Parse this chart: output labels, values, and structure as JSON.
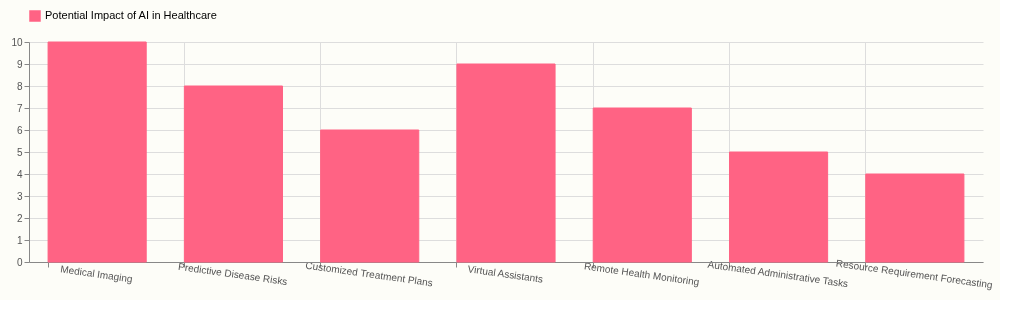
{
  "chart_data": {
    "type": "bar",
    "categories": [
      "Medical Imaging",
      "Predictive Disease Risks",
      "Customized Treatment Plans",
      "Virtual Assistants",
      "Remote Health Monitoring",
      "Automated Administrative Tasks",
      "Resource Requirement Forecasting"
    ],
    "series": [
      {
        "name": "Potential Impact of AI in Healthcare",
        "color": "#ff6384",
        "values": [
          10,
          8,
          6,
          9,
          7,
          5,
          4
        ]
      }
    ],
    "ylim": [
      0,
      10
    ],
    "yticks": [
      0,
      1,
      2,
      3,
      4,
      5,
      6,
      7,
      8,
      9,
      10
    ],
    "grid": true,
    "legend": "top"
  }
}
